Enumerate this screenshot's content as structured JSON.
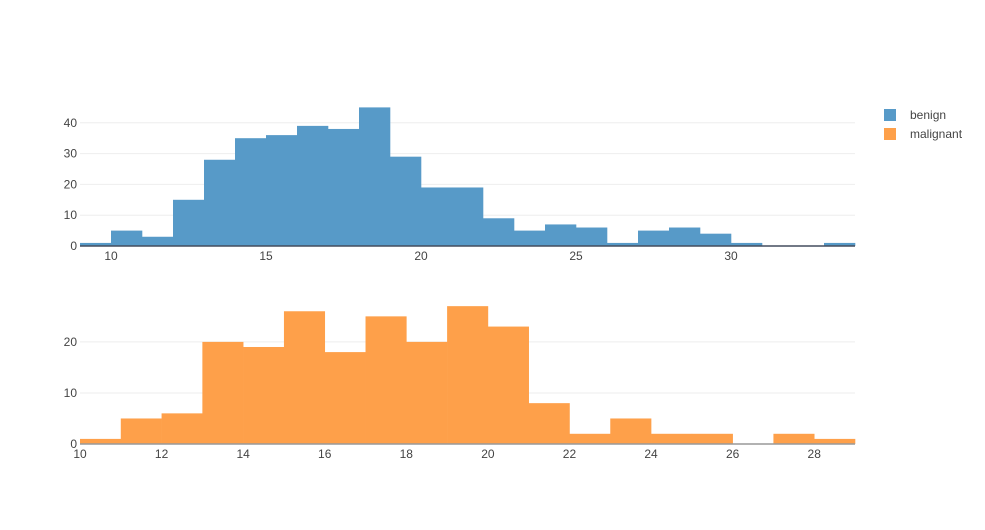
{
  "chart_data": [
    {
      "type": "bar",
      "title": "",
      "series_name": "benign",
      "color": "#579ac8",
      "axis_color": "#444d5e",
      "bin_start": 9,
      "bin_width": 1,
      "values": [
        1,
        5,
        3,
        15,
        28,
        35,
        36,
        39,
        38,
        45,
        29,
        19,
        19,
        9,
        5,
        7,
        6,
        1,
        5,
        6,
        4,
        1,
        0,
        0,
        1
      ],
      "xlim": [
        9,
        34
      ],
      "ylim": [
        0,
        47.4
      ],
      "xticks": [
        "10",
        "15",
        "20",
        "25",
        "30"
      ],
      "yticks": [
        "0",
        "10",
        "20",
        "30",
        "40"
      ],
      "xlabel": "",
      "ylabel": "",
      "grid": true
    },
    {
      "type": "bar",
      "title": "",
      "series_name": "malignant",
      "color": "#fea04a",
      "axis_color": "#999999",
      "bin_start": 10,
      "bin_width": 1,
      "values": [
        1,
        5,
        6,
        20,
        19,
        26,
        18,
        25,
        20,
        27,
        23,
        8,
        2,
        5,
        2,
        2,
        0,
        2,
        1
      ],
      "xlim": [
        10,
        29
      ],
      "ylim": [
        0,
        28.4
      ],
      "xticks": [
        "10",
        "12",
        "14",
        "16",
        "18",
        "20",
        "22",
        "24",
        "26",
        "28"
      ],
      "yticks": [
        "0",
        "10",
        "20"
      ],
      "xlabel": "",
      "ylabel": "",
      "grid": true
    }
  ],
  "legend": [
    {
      "label": "benign",
      "color": "#579ac8"
    },
    {
      "label": "malignant",
      "color": "#fea04a"
    }
  ]
}
